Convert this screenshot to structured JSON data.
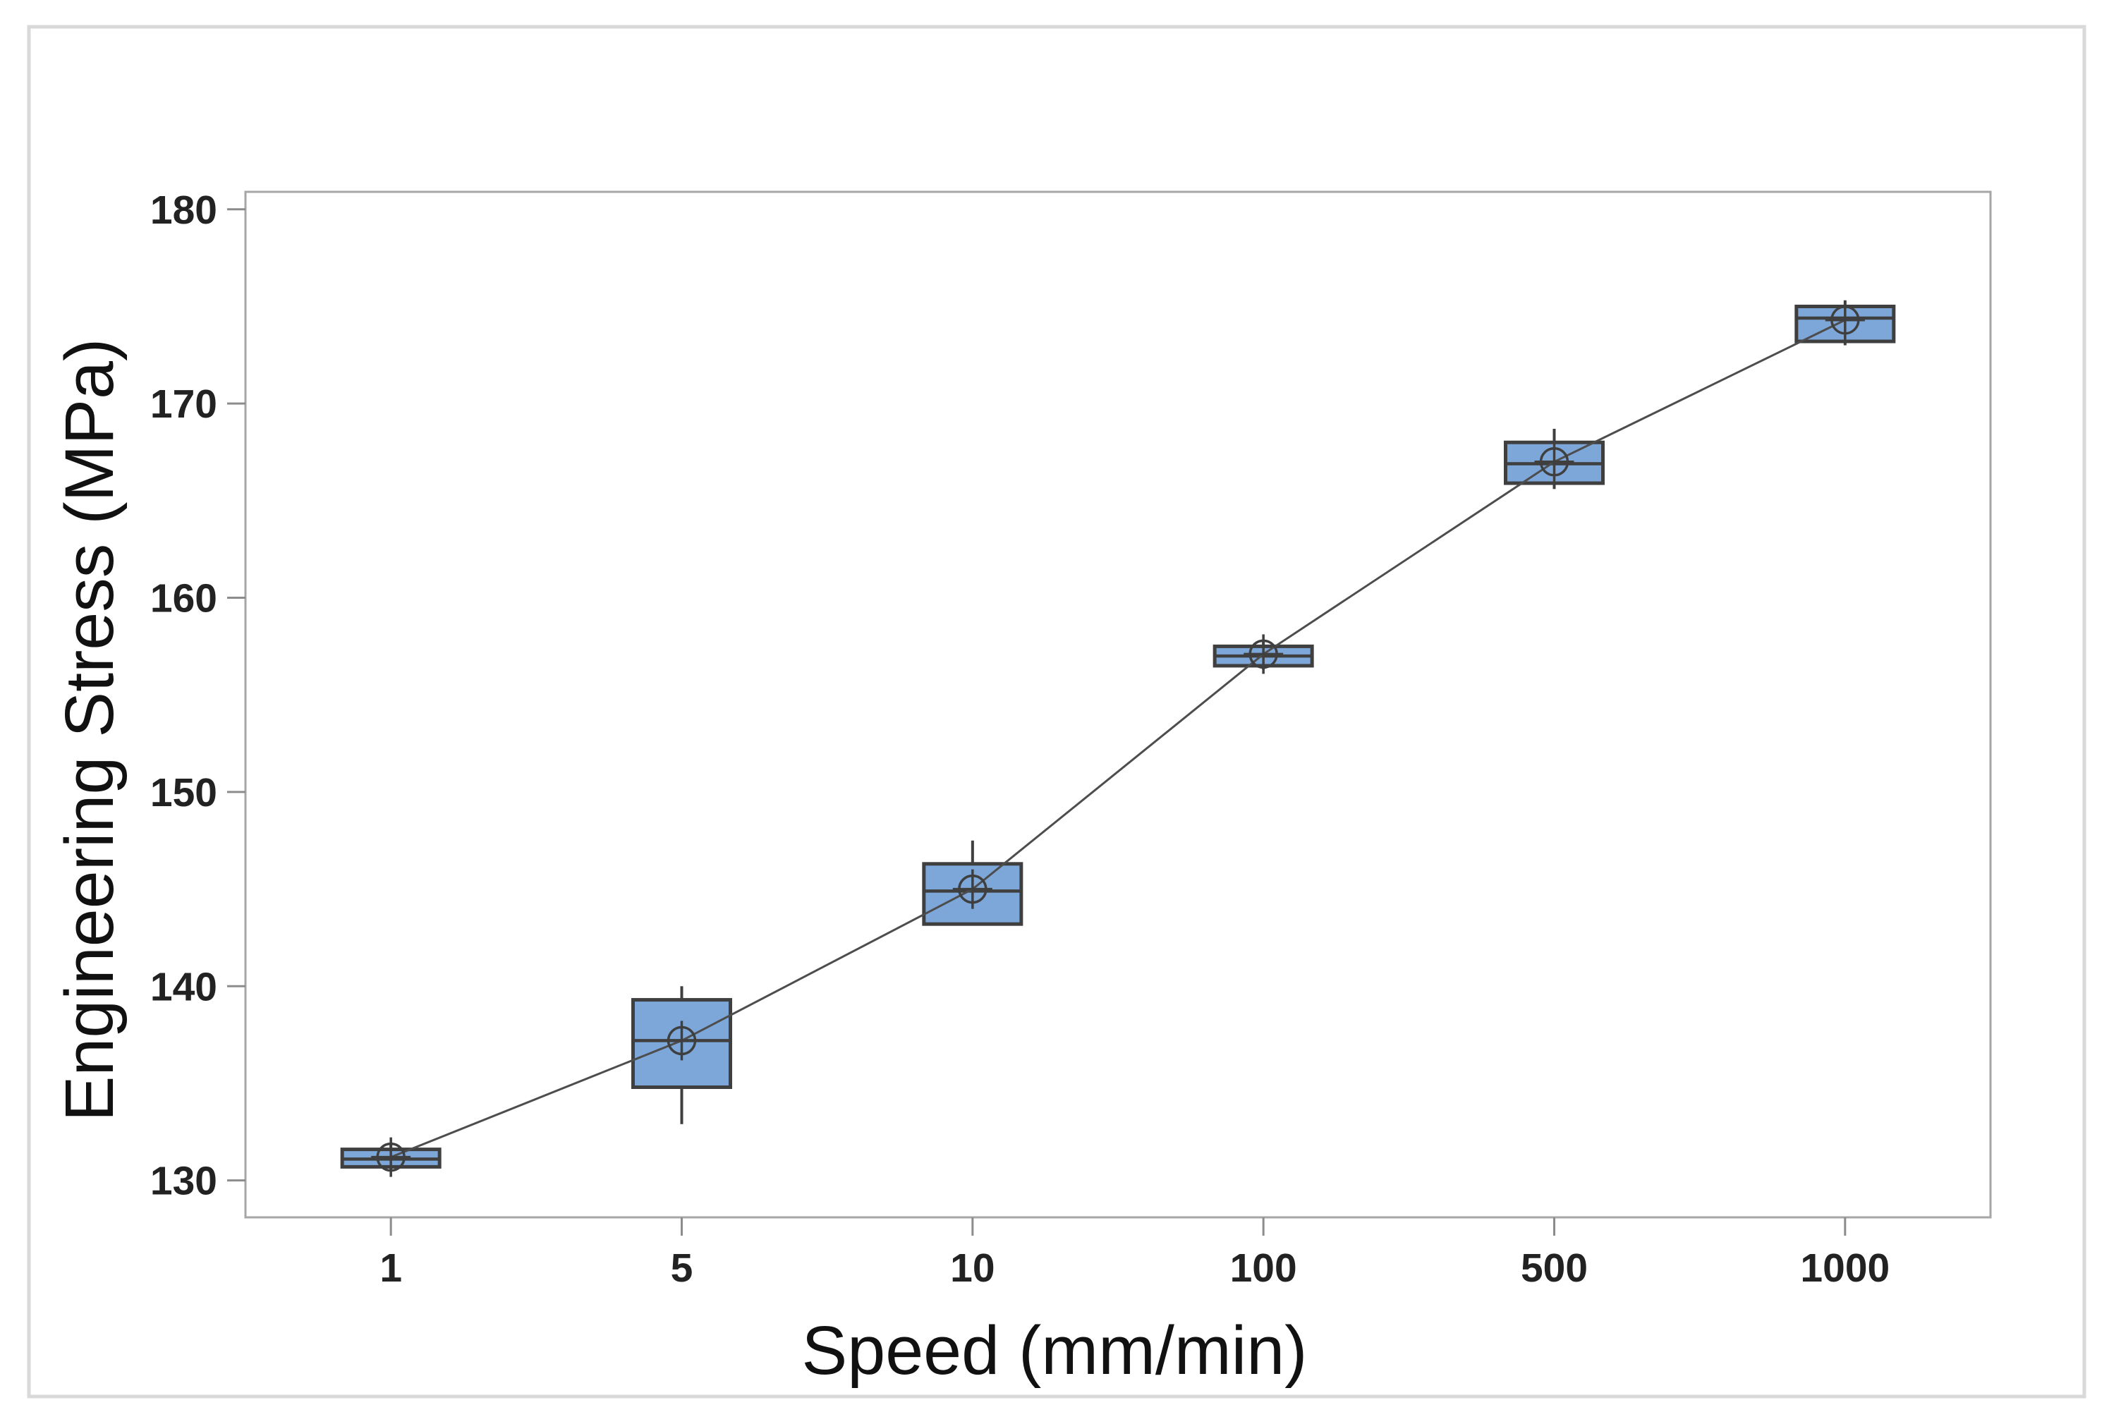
{
  "figure": {
    "background_color": "#ffffff",
    "outer_border_color": "#d9d9d9"
  },
  "chart_data": {
    "type": "box",
    "title": "",
    "xlabel": "Speed (mm/min)",
    "ylabel": "Engineering Stress (MPa)",
    "categories": [
      "1",
      "5",
      "10",
      "100",
      "500",
      "1000"
    ],
    "y_ticks": [
      "130",
      "140",
      "150",
      "160",
      "170",
      "180"
    ],
    "ylim": [
      128.1,
      180.9
    ],
    "grid": "off",
    "legend": "none",
    "series": [
      {
        "speed": "1",
        "whisker_low": 130.5,
        "q1": 130.7,
        "median": 131.1,
        "q3": 131.6,
        "whisker_high": 131.9,
        "mean": 131.2
      },
      {
        "speed": "5",
        "whisker_low": 132.9,
        "q1": 134.8,
        "median": 137.2,
        "q3": 139.3,
        "whisker_high": 140.0,
        "mean": 137.2
      },
      {
        "speed": "10",
        "whisker_low": 143.2,
        "q1": 143.2,
        "median": 144.9,
        "q3": 146.3,
        "whisker_high": 147.5,
        "mean": 145.0
      },
      {
        "speed": "100",
        "whisker_low": 156.3,
        "q1": 156.5,
        "median": 157.0,
        "q3": 157.5,
        "whisker_high": 157.8,
        "mean": 157.1
      },
      {
        "speed": "500",
        "whisker_low": 165.6,
        "q1": 165.9,
        "median": 166.9,
        "q3": 168.0,
        "whisker_high": 168.7,
        "mean": 167.0
      },
      {
        "speed": "1000",
        "whisker_low": 173.0,
        "q1": 173.2,
        "median": 174.4,
        "q3": 175.0,
        "whisker_high": 175.3,
        "mean": 174.3
      }
    ],
    "mean_connect_line": true,
    "colors": {
      "box_fill": "#7da7d9",
      "box_edge": "#3f3f3f",
      "median_line": "#3f3f3f",
      "whisker": "#3f3f3f",
      "mean_marker": "#3f3f3f",
      "trend_line": "#4d4d4d",
      "axis_frame": "#a6a6a6",
      "tick_mark": "#8c8c8c"
    }
  }
}
